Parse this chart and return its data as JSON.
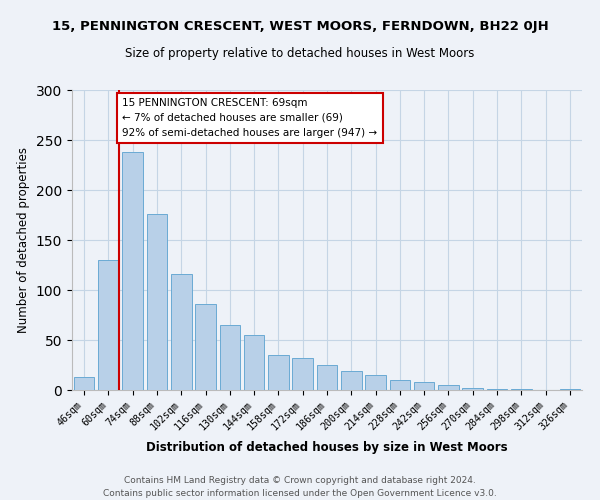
{
  "title_line1": "15, PENNINGTON CRESCENT, WEST MOORS, FERNDOWN, BH22 0JH",
  "title_line2": "Size of property relative to detached houses in West Moors",
  "xlabel": "Distribution of detached houses by size in West Moors",
  "ylabel": "Number of detached properties",
  "bar_labels": [
    "46sqm",
    "60sqm",
    "74sqm",
    "88sqm",
    "102sqm",
    "116sqm",
    "130sqm",
    "144sqm",
    "158sqm",
    "172sqm",
    "186sqm",
    "200sqm",
    "214sqm",
    "228sqm",
    "242sqm",
    "256sqm",
    "270sqm",
    "284sqm",
    "298sqm",
    "312sqm",
    "326sqm"
  ],
  "bar_values": [
    13,
    130,
    238,
    176,
    116,
    86,
    65,
    55,
    35,
    32,
    25,
    19,
    15,
    10,
    8,
    5,
    2,
    1,
    1,
    0,
    1
  ],
  "bar_color": "#b8d0e8",
  "bar_edge_color": "#6aaad4",
  "highlight_bar_index": 1,
  "highlight_color": "#cc0000",
  "annotation_text": "15 PENNINGTON CRESCENT: 69sqm\n← 7% of detached houses are smaller (69)\n92% of semi-detached houses are larger (947) →",
  "annotation_box_color": "#cc0000",
  "ylim": [
    0,
    300
  ],
  "yticks": [
    0,
    50,
    100,
    150,
    200,
    250,
    300
  ],
  "footer_line1": "Contains HM Land Registry data © Crown copyright and database right 2024.",
  "footer_line2": "Contains public sector information licensed under the Open Government Licence v3.0.",
  "bg_color": "#eef2f8",
  "grid_color": "#c5d5e5"
}
